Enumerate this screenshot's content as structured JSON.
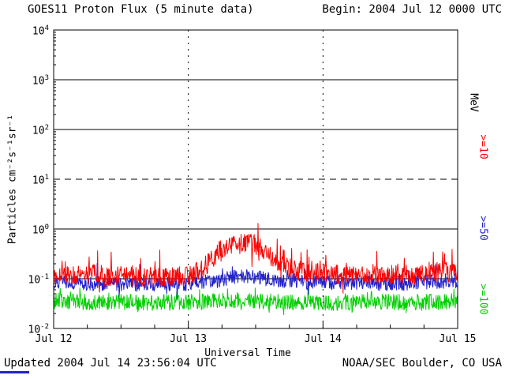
{
  "page": {
    "begin_label": "Begin: 2004 Jul 12 0000 UTC",
    "updated_label": "Updated 2004 Jul 14 23:56:04 UTC",
    "credit_label": "NOAA/SEC Boulder, CO USA"
  },
  "chart_data": {
    "type": "line",
    "title": "GOES11 Proton Flux (5 minute data)",
    "xlabel": "Universal Time",
    "ylabel": "Particles cm⁻²s⁻¹sr⁻¹",
    "right_unit": "MeV",
    "hours_total": 72,
    "sample_minutes": 5,
    "ylim_log": [
      -2,
      4
    ],
    "y_scale": "log10",
    "x_ticks": [
      {
        "label": "Jul 12",
        "hour": 0
      },
      {
        "label": "Jul 13",
        "hour": 24
      },
      {
        "label": "Jul 14",
        "hour": 48
      },
      {
        "label": "Jul 15",
        "hour": 72
      }
    ],
    "y_ticks": [
      {
        "base": "10",
        "exp": "4"
      },
      {
        "base": "10",
        "exp": "3"
      },
      {
        "base": "10",
        "exp": "2"
      },
      {
        "base": "10",
        "exp": "1"
      },
      {
        "base": "10",
        "exp": "0"
      },
      {
        "base": "10",
        "exp": "-1"
      },
      {
        "base": "10",
        "exp": "-2"
      }
    ],
    "gridlines": {
      "solid_exps": [
        3,
        2,
        0,
        -1
      ],
      "dashed_exps": [
        1
      ],
      "vertical_dotted_hours": [
        24,
        48
      ]
    },
    "x_minor_tick_hours": 6,
    "y_minor_ticks": true,
    "series": [
      {
        "name": ">=10",
        "color": "#fb0000",
        "seed": 12,
        "noise_log": 0.2,
        "spike_prob": 0.07,
        "spike_log": 0.4,
        "envelope_points": [
          [
            0,
            0.13
          ],
          [
            3,
            0.12
          ],
          [
            6,
            0.13
          ],
          [
            9,
            0.11
          ],
          [
            12,
            0.12
          ],
          [
            15,
            0.1
          ],
          [
            18,
            0.11
          ],
          [
            21,
            0.11
          ],
          [
            24,
            0.12
          ],
          [
            26,
            0.14
          ],
          [
            27,
            0.18
          ],
          [
            28,
            0.24
          ],
          [
            29,
            0.32
          ],
          [
            30,
            0.4
          ],
          [
            31,
            0.46
          ],
          [
            32,
            0.52
          ],
          [
            33,
            0.55
          ],
          [
            34,
            0.55
          ],
          [
            35,
            0.52
          ],
          [
            36,
            0.48
          ],
          [
            37,
            0.42
          ],
          [
            38,
            0.35
          ],
          [
            39,
            0.28
          ],
          [
            40,
            0.22
          ],
          [
            41,
            0.18
          ],
          [
            42,
            0.16
          ],
          [
            44,
            0.14
          ],
          [
            46,
            0.13
          ],
          [
            48,
            0.13
          ],
          [
            52,
            0.12
          ],
          [
            56,
            0.11
          ],
          [
            60,
            0.12
          ],
          [
            64,
            0.12
          ],
          [
            68,
            0.13
          ],
          [
            72,
            0.14
          ]
        ]
      },
      {
        "name": ">=50",
        "color": "#2222cc",
        "seed": 50,
        "noise_log": 0.15,
        "spike_prob": 0.05,
        "spike_log": 0.28,
        "envelope_points": [
          [
            0,
            0.085
          ],
          [
            6,
            0.08
          ],
          [
            12,
            0.078
          ],
          [
            18,
            0.075
          ],
          [
            24,
            0.08
          ],
          [
            27,
            0.085
          ],
          [
            30,
            0.095
          ],
          [
            32,
            0.105
          ],
          [
            34,
            0.11
          ],
          [
            36,
            0.105
          ],
          [
            38,
            0.1
          ],
          [
            40,
            0.095
          ],
          [
            42,
            0.09
          ],
          [
            46,
            0.088
          ],
          [
            48,
            0.085
          ],
          [
            54,
            0.082
          ],
          [
            60,
            0.08
          ],
          [
            66,
            0.085
          ],
          [
            72,
            0.092
          ]
        ]
      },
      {
        "name": ">=100",
        "color": "#00d000",
        "seed": 100,
        "noise_log": 0.16,
        "spike_prob": 0.05,
        "spike_log": 0.22,
        "envelope_points": [
          [
            0,
            0.036
          ],
          [
            6,
            0.034
          ],
          [
            12,
            0.034
          ],
          [
            18,
            0.033
          ],
          [
            24,
            0.034
          ],
          [
            30,
            0.036
          ],
          [
            36,
            0.036
          ],
          [
            42,
            0.034
          ],
          [
            48,
            0.033
          ],
          [
            54,
            0.033
          ],
          [
            60,
            0.034
          ],
          [
            66,
            0.034
          ],
          [
            72,
            0.036
          ]
        ]
      }
    ]
  }
}
